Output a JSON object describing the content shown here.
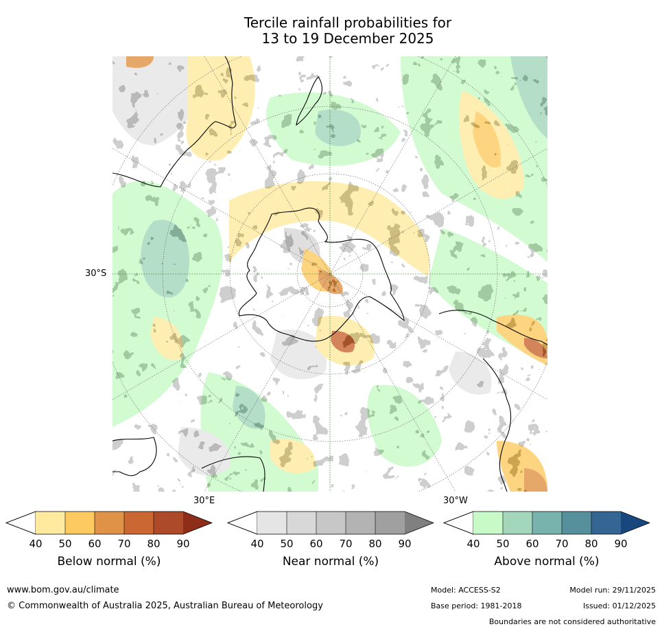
{
  "title_line1": "Tercile rainfall probabilities for",
  "title_line2": "13 to 19 December 2025",
  "map": {
    "lat_label": "30°S",
    "lon_label_east": "30°E",
    "lon_label_west": "30°W"
  },
  "colorbars": [
    {
      "label": "Below normal (%)",
      "ticks": [
        "40",
        "50",
        "60",
        "70",
        "80",
        "90"
      ],
      "colors": [
        "#ffeaa0",
        "#fdca62",
        "#e09346",
        "#ca6733",
        "#ad4a2a",
        "#8e2d18"
      ]
    },
    {
      "label": "Near normal (%)",
      "ticks": [
        "40",
        "50",
        "60",
        "70",
        "80",
        "90"
      ],
      "colors": [
        "#e5e5e5",
        "#d8d8d8",
        "#c7c7c7",
        "#b3b3b3",
        "#a0a0a0",
        "#808080"
      ]
    },
    {
      "label": "Above normal (%)",
      "ticks": [
        "40",
        "50",
        "60",
        "70",
        "80",
        "90"
      ],
      "colors": [
        "#c8fac8",
        "#a3d6bb",
        "#79b3ad",
        "#55909c",
        "#356693",
        "#17477c"
      ]
    }
  ],
  "footer": {
    "website": "www.bom.gov.au/climate",
    "copyright": "© Commonwealth of Australia 2025, Australian Bureau of Meteorology",
    "model": "Model: ACCESS-S2",
    "model_run": "Model run: 29/11/2025",
    "base_period": "Base period: 1981-2018",
    "issued": "Issued: 01/12/2025",
    "disclaimer": "Boundaries are not considered authoritative"
  }
}
